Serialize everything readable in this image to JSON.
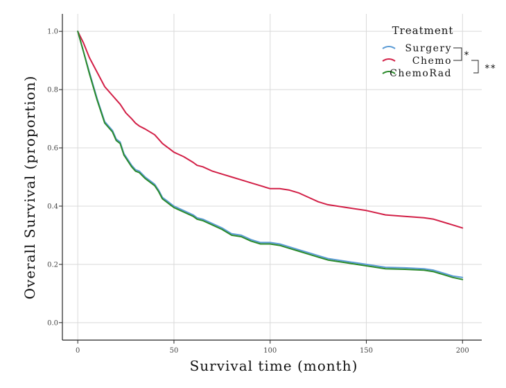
{
  "chart_data": {
    "type": "line",
    "title": "",
    "xlabel": "Survival time (month)",
    "ylabel": "Overall Survival (proportion)",
    "xlim": [
      -8,
      210
    ],
    "ylim": [
      -0.06,
      1.06
    ],
    "grid": true,
    "xticks": [
      0,
      50,
      100,
      150,
      200
    ],
    "xtick_labels": [
      "0",
      "50",
      "100",
      "150",
      "200"
    ],
    "yticks": [
      0.0,
      0.2,
      0.4,
      0.6,
      0.8,
      1.0
    ],
    "ytick_labels": [
      "0.0",
      "0.2",
      "0.4",
      "0.6",
      "0.8",
      "1.0"
    ],
    "legend": {
      "title": "Treatment",
      "position": "top-right",
      "significance": [
        {
          "pair": [
            "Surgery",
            "Chemo"
          ],
          "label": "*"
        },
        {
          "pair": [
            "Chemo",
            "ChemoRad"
          ],
          "label": "**"
        }
      ]
    },
    "series": [
      {
        "name": "Surgery",
        "color": "#5b9bd5",
        "x": [
          0,
          3,
          6,
          10,
          14,
          18,
          20,
          22,
          24,
          26,
          28,
          30,
          32,
          35,
          38,
          40,
          42,
          44,
          46,
          48,
          50,
          55,
          60,
          62,
          65,
          70,
          75,
          80,
          85,
          90,
          95,
          100,
          105,
          110,
          115,
          120,
          125,
          130,
          140,
          150,
          160,
          170,
          180,
          185,
          190,
          195,
          200
        ],
        "y": [
          1.0,
          0.93,
          0.86,
          0.77,
          0.69,
          0.66,
          0.63,
          0.62,
          0.58,
          0.56,
          0.54,
          0.525,
          0.52,
          0.5,
          0.485,
          0.475,
          0.455,
          0.43,
          0.42,
          0.41,
          0.4,
          0.385,
          0.37,
          0.36,
          0.355,
          0.34,
          0.325,
          0.305,
          0.3,
          0.285,
          0.275,
          0.275,
          0.27,
          0.26,
          0.25,
          0.24,
          0.23,
          0.22,
          0.21,
          0.2,
          0.19,
          0.188,
          0.185,
          0.18,
          0.17,
          0.16,
          0.155
        ]
      },
      {
        "name": "Chemo",
        "color": "#d21f46",
        "x": [
          0,
          3,
          6,
          10,
          14,
          18,
          20,
          22,
          25,
          28,
          30,
          32,
          35,
          40,
          42,
          44,
          46,
          48,
          50,
          55,
          60,
          62,
          65,
          70,
          75,
          80,
          85,
          90,
          95,
          100,
          105,
          110,
          115,
          120,
          125,
          130,
          140,
          150,
          160,
          170,
          180,
          185,
          190,
          195,
          200
        ],
        "y": [
          1.0,
          0.96,
          0.91,
          0.86,
          0.81,
          0.78,
          0.765,
          0.75,
          0.72,
          0.7,
          0.685,
          0.675,
          0.665,
          0.645,
          0.63,
          0.615,
          0.605,
          0.595,
          0.585,
          0.57,
          0.55,
          0.54,
          0.535,
          0.52,
          0.51,
          0.5,
          0.49,
          0.48,
          0.47,
          0.46,
          0.46,
          0.455,
          0.445,
          0.43,
          0.415,
          0.405,
          0.395,
          0.385,
          0.37,
          0.365,
          0.36,
          0.355,
          0.345,
          0.335,
          0.325
        ]
      },
      {
        "name": "ChemoRad",
        "color": "#2a8a2a",
        "x": [
          0,
          3,
          6,
          10,
          14,
          18,
          20,
          22,
          24,
          26,
          28,
          30,
          32,
          35,
          38,
          40,
          42,
          44,
          46,
          48,
          50,
          55,
          60,
          62,
          65,
          70,
          75,
          80,
          85,
          90,
          95,
          100,
          105,
          110,
          115,
          120,
          125,
          130,
          140,
          150,
          160,
          170,
          180,
          185,
          190,
          195,
          200
        ],
        "y": [
          1.0,
          0.93,
          0.855,
          0.765,
          0.685,
          0.655,
          0.625,
          0.615,
          0.575,
          0.555,
          0.535,
          0.52,
          0.515,
          0.495,
          0.48,
          0.47,
          0.45,
          0.425,
          0.415,
          0.405,
          0.395,
          0.38,
          0.365,
          0.355,
          0.35,
          0.335,
          0.32,
          0.3,
          0.295,
          0.28,
          0.27,
          0.27,
          0.265,
          0.255,
          0.245,
          0.235,
          0.225,
          0.215,
          0.205,
          0.195,
          0.185,
          0.183,
          0.18,
          0.175,
          0.165,
          0.155,
          0.148
        ]
      }
    ]
  }
}
